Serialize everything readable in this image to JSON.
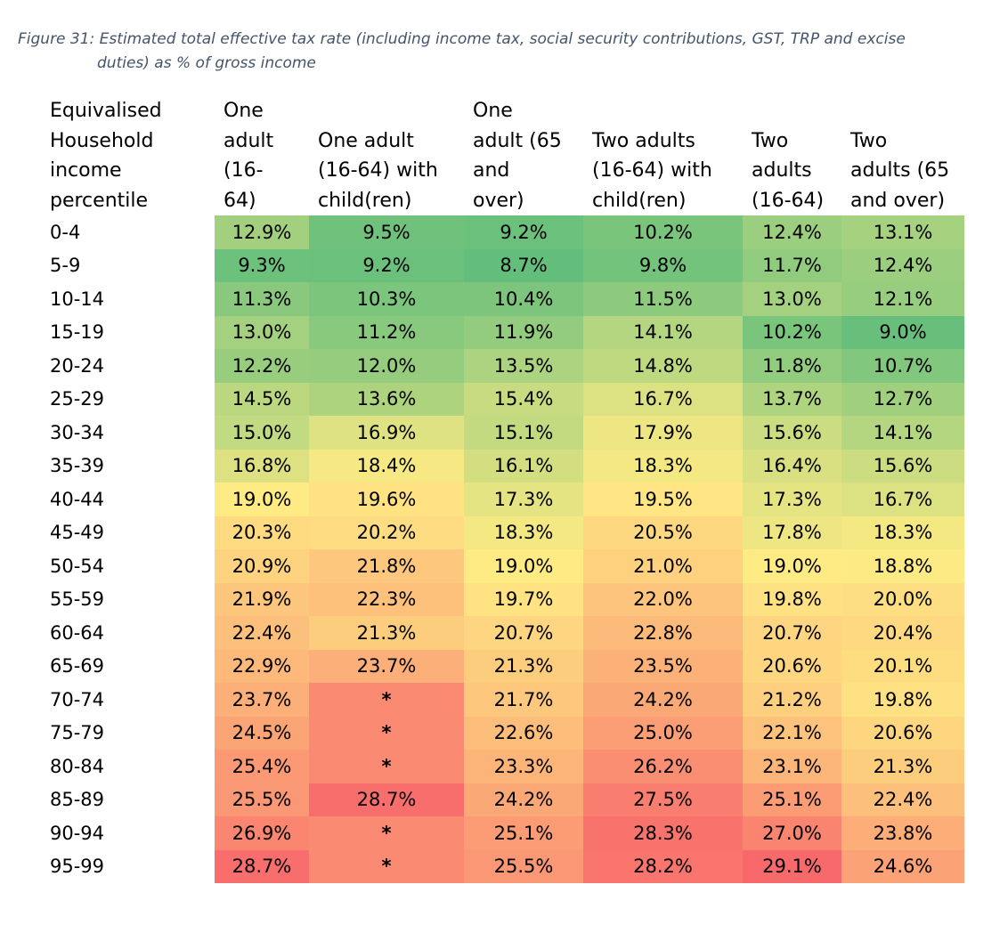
{
  "caption": {
    "line1": "Figure 31: Estimated total effective tax rate (including income tax, social security contributions, GST, TRP and excise",
    "line2": "duties) as % of gross income"
  },
  "headers": [
    [
      "Equivalised",
      "Household",
      "income",
      "percentile"
    ],
    [
      "One",
      "adult",
      "(16-",
      "64)"
    ],
    [
      "One adult",
      "(16-64) with",
      "child(ren)"
    ],
    [
      "One",
      "adult (65",
      "and",
      "over)"
    ],
    [
      "Two adults",
      "(16-64) with",
      "child(ren)"
    ],
    [
      "Two",
      "adults",
      "(16-64)"
    ],
    [
      "Two",
      "adults (65",
      "and over)"
    ]
  ],
  "rows": [
    {
      "pct": "0-4",
      "values": [
        "12.9%",
        "9.5%",
        "9.2%",
        "10.2%",
        "12.4%",
        "13.1%"
      ]
    },
    {
      "pct": "5-9",
      "values": [
        "9.3%",
        "9.2%",
        "8.7%",
        "9.8%",
        "11.7%",
        "12.4%"
      ]
    },
    {
      "pct": "10-14",
      "values": [
        "11.3%",
        "10.3%",
        "10.4%",
        "11.5%",
        "13.0%",
        "12.1%"
      ]
    },
    {
      "pct": "15-19",
      "values": [
        "13.0%",
        "11.2%",
        "11.9%",
        "14.1%",
        "10.2%",
        "9.0%"
      ]
    },
    {
      "pct": "20-24",
      "values": [
        "12.2%",
        "12.0%",
        "13.5%",
        "14.8%",
        "11.8%",
        "10.7%"
      ]
    },
    {
      "pct": "25-29",
      "values": [
        "14.5%",
        "13.6%",
        "15.4%",
        "16.7%",
        "13.7%",
        "12.7%"
      ]
    },
    {
      "pct": "30-34",
      "values": [
        "15.0%",
        "16.9%",
        "15.1%",
        "17.9%",
        "15.6%",
        "14.1%"
      ]
    },
    {
      "pct": "35-39",
      "values": [
        "16.8%",
        "18.4%",
        "16.1%",
        "18.3%",
        "16.4%",
        "15.6%"
      ]
    },
    {
      "pct": "40-44",
      "values": [
        "19.0%",
        "19.6%",
        "17.3%",
        "19.5%",
        "17.3%",
        "16.7%"
      ]
    },
    {
      "pct": "45-49",
      "values": [
        "20.3%",
        "20.2%",
        "18.3%",
        "20.5%",
        "17.8%",
        "18.3%"
      ]
    },
    {
      "pct": "50-54",
      "values": [
        "20.9%",
        "21.8%",
        "19.0%",
        "21.0%",
        "19.0%",
        "18.8%"
      ]
    },
    {
      "pct": "55-59",
      "values": [
        "21.9%",
        "22.3%",
        "19.7%",
        "22.0%",
        "19.8%",
        "20.0%"
      ]
    },
    {
      "pct": "60-64",
      "values": [
        "22.4%",
        "21.3%",
        "20.7%",
        "22.8%",
        "20.7%",
        "20.4%"
      ]
    },
    {
      "pct": "65-69",
      "values": [
        "22.9%",
        "23.7%",
        "21.3%",
        "23.5%",
        "20.6%",
        "20.1%"
      ]
    },
    {
      "pct": "70-74",
      "values": [
        "23.7%",
        "*",
        "21.7%",
        "24.2%",
        "21.2%",
        "19.8%"
      ]
    },
    {
      "pct": "75-79",
      "values": [
        "24.5%",
        "*",
        "22.6%",
        "25.0%",
        "22.1%",
        "20.6%"
      ]
    },
    {
      "pct": "80-84",
      "values": [
        "25.4%",
        "*",
        "23.3%",
        "26.2%",
        "23.1%",
        "21.3%"
      ]
    },
    {
      "pct": "85-89",
      "values": [
        "25.5%",
        "28.7%",
        "24.2%",
        "27.5%",
        "25.1%",
        "22.4%"
      ]
    },
    {
      "pct": "90-94",
      "values": [
        "26.9%",
        "*",
        "25.1%",
        "28.3%",
        "27.0%",
        "23.8%"
      ]
    },
    {
      "pct": "95-99",
      "values": [
        "28.7%",
        "*",
        "25.5%",
        "28.2%",
        "29.1%",
        "24.6%"
      ]
    }
  ],
  "scale": {
    "min": 8.7,
    "mid": 19.0,
    "max": 29.1,
    "low_color": "#63be7b",
    "mid_color": "#ffeb84",
    "high_color": "#f8696b"
  }
}
